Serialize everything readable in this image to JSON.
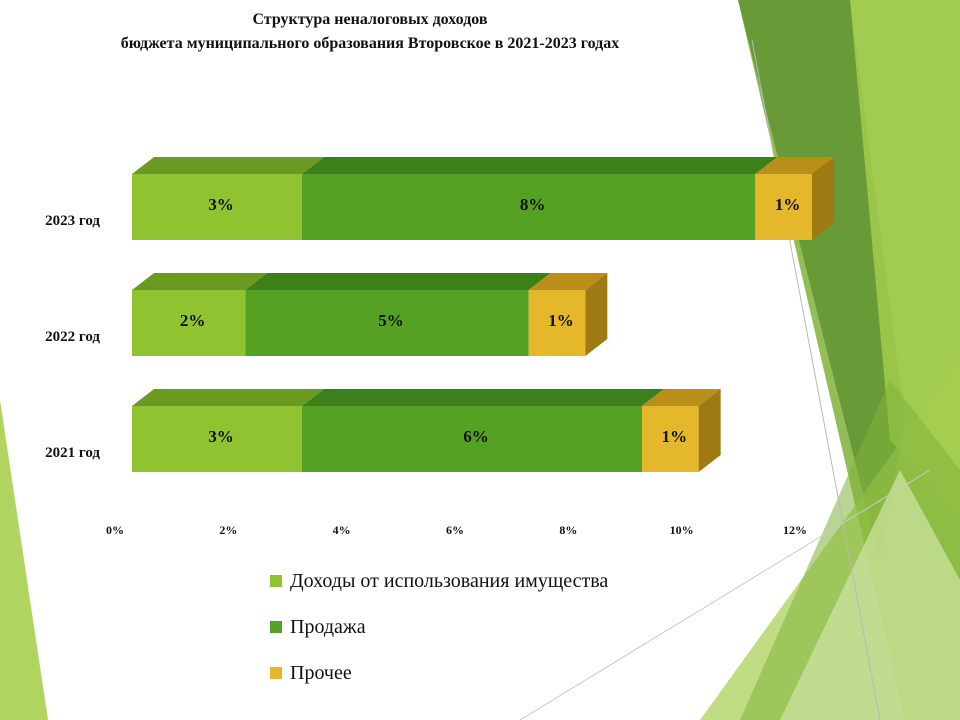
{
  "slide": {
    "title_line1": "Структура неналоговых доходов",
    "title_line2": "бюджета муниципального образования Второвское в 2021-2023 годах"
  },
  "colors": {
    "series": [
      "#8fc32f",
      "#55a123",
      "#e5b72a"
    ],
    "series_top": [
      "#6b9a23",
      "#3d7f19",
      "#b98e1a"
    ],
    "series_side": [
      "#6f9a23",
      "#3c7d1a",
      "#9f7a12"
    ],
    "decor_light": "#a6cf4e",
    "decor_mid": "#7fb23a",
    "decor_dark": "#5a8f2e",
    "decor_pale": "#d9ebb4"
  },
  "chart_data": {
    "type": "bar",
    "orientation": "horizontal",
    "stacked": true,
    "categories": [
      "2023 год",
      "2022 год",
      "2021 год"
    ],
    "series": [
      {
        "name": "Доходы от использования имущества",
        "values": [
          3,
          2,
          3
        ],
        "labels": [
          "3%",
          "2%",
          "3%"
        ]
      },
      {
        "name": "Продажа",
        "values": [
          8,
          5,
          6
        ],
        "labels": [
          "8%",
          "5%",
          "6%"
        ]
      },
      {
        "name": "Прочее",
        "values": [
          1,
          1,
          1
        ],
        "labels": [
          "1%",
          "1%",
          "1%"
        ]
      }
    ],
    "xlim": [
      0,
      12
    ],
    "xticks": [
      "0%",
      "2%",
      "4%",
      "6%",
      "8%",
      "10%",
      "12%"
    ],
    "grid": false,
    "legend_position": "bottom"
  }
}
